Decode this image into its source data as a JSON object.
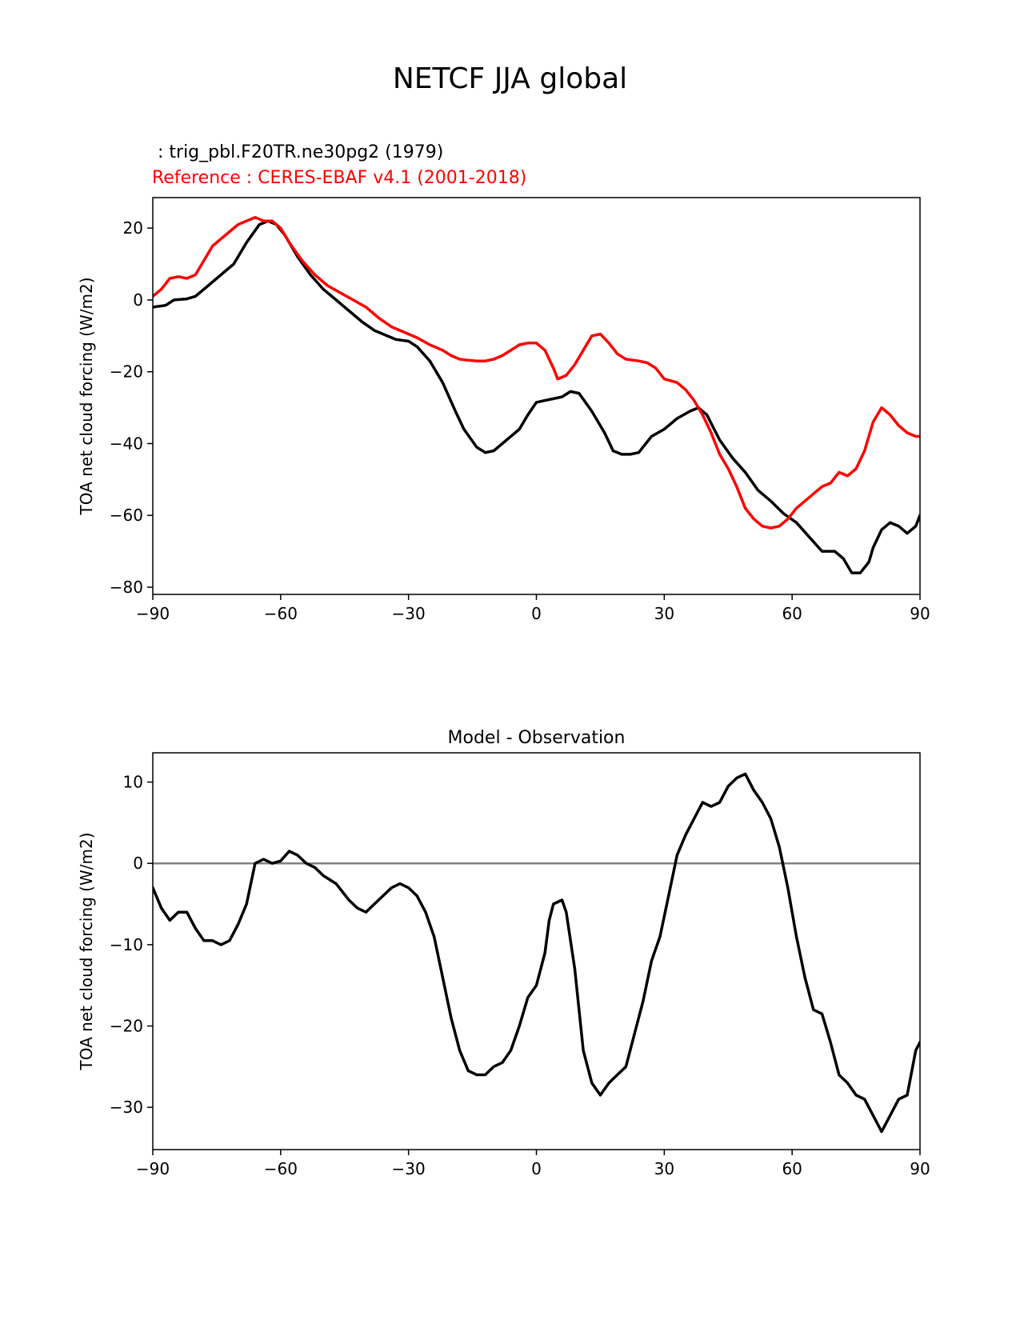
{
  "figure": {
    "title": "NETCF JJA global",
    "test_label": " : trig_pbl.F20TR.ne30pg2 (1979)",
    "ref_label": "Reference : CERES-EBAF v4.1 (2001-2018)",
    "colors": {
      "test": "#000000",
      "reference": "#ff0000",
      "zero_line": "#808080"
    }
  },
  "chart_data": [
    {
      "type": "line",
      "title": "",
      "xlabel": "",
      "ylabel": "TOA net cloud forcing (W/m2)",
      "xlim": [
        -90,
        90
      ],
      "ylim": [
        -82,
        28.5
      ],
      "xticks": [
        -90,
        -60,
        -30,
        0,
        30,
        60,
        90
      ],
      "yticks": [
        -80,
        -60,
        -40,
        -20,
        0,
        20
      ],
      "series": [
        {
          "color": "#000000",
          "points": [
            [
              -90,
              -2
            ],
            [
              -87,
              -1.5
            ],
            [
              -85,
              0
            ],
            [
              -82,
              0.3
            ],
            [
              -80,
              1
            ],
            [
              -77,
              4
            ],
            [
              -74,
              7
            ],
            [
              -71,
              10
            ],
            [
              -68,
              16
            ],
            [
              -65,
              21
            ],
            [
              -63,
              22
            ],
            [
              -61,
              21
            ],
            [
              -59,
              18
            ],
            [
              -56,
              12
            ],
            [
              -53,
              7
            ],
            [
              -50,
              3
            ],
            [
              -47,
              0
            ],
            [
              -44,
              -3
            ],
            [
              -41,
              -6
            ],
            [
              -38,
              -8.5
            ],
            [
              -35,
              -10
            ],
            [
              -33,
              -11
            ],
            [
              -30,
              -11.5
            ],
            [
              -28,
              -13
            ],
            [
              -25,
              -17
            ],
            [
              -22,
              -23
            ],
            [
              -19,
              -31
            ],
            [
              -17,
              -36
            ],
            [
              -14,
              -41
            ],
            [
              -12,
              -42.5
            ],
            [
              -10,
              -42
            ],
            [
              -7,
              -39
            ],
            [
              -4,
              -36
            ],
            [
              -2,
              -32
            ],
            [
              0,
              -28.5
            ],
            [
              2,
              -28
            ],
            [
              4,
              -27.5
            ],
            [
              6,
              -27
            ],
            [
              8,
              -25.5
            ],
            [
              10,
              -26
            ],
            [
              13,
              -31
            ],
            [
              16,
              -37
            ],
            [
              18,
              -42
            ],
            [
              20,
              -43
            ],
            [
              22,
              -43
            ],
            [
              24,
              -42.5
            ],
            [
              27,
              -38
            ],
            [
              30,
              -36
            ],
            [
              33,
              -33
            ],
            [
              36,
              -31
            ],
            [
              38,
              -30
            ],
            [
              40,
              -32
            ],
            [
              43,
              -39
            ],
            [
              46,
              -44
            ],
            [
              49,
              -48
            ],
            [
              52,
              -53
            ],
            [
              55,
              -56
            ],
            [
              58,
              -59.5
            ],
            [
              61,
              -62
            ],
            [
              64,
              -66
            ],
            [
              67,
              -70
            ],
            [
              70,
              -70
            ],
            [
              72,
              -72
            ],
            [
              74,
              -76
            ],
            [
              76,
              -76
            ],
            [
              78,
              -73
            ],
            [
              79,
              -69
            ],
            [
              81,
              -64
            ],
            [
              83,
              -62
            ],
            [
              85,
              -63
            ],
            [
              87,
              -65
            ],
            [
              89,
              -63
            ],
            [
              90,
              -60
            ]
          ]
        },
        {
          "color": "#ff0000",
          "points": [
            [
              -90,
              1
            ],
            [
              -88,
              3
            ],
            [
              -86,
              6
            ],
            [
              -84,
              6.5
            ],
            [
              -82,
              6
            ],
            [
              -80,
              7
            ],
            [
              -78,
              11
            ],
            [
              -76,
              15
            ],
            [
              -74,
              17
            ],
            [
              -72,
              19
            ],
            [
              -70,
              21
            ],
            [
              -68,
              22
            ],
            [
              -66,
              23
            ],
            [
              -64,
              22
            ],
            [
              -62,
              22
            ],
            [
              -60,
              20
            ],
            [
              -58,
              16
            ],
            [
              -55,
              11
            ],
            [
              -52,
              7
            ],
            [
              -49,
              4
            ],
            [
              -46,
              2
            ],
            [
              -43,
              0
            ],
            [
              -40,
              -2
            ],
            [
              -37,
              -5
            ],
            [
              -34,
              -7.5
            ],
            [
              -31,
              -9
            ],
            [
              -28,
              -10.5
            ],
            [
              -25,
              -12.5
            ],
            [
              -22,
              -14
            ],
            [
              -20,
              -15.5
            ],
            [
              -18,
              -16.5
            ],
            [
              -16,
              -16.8
            ],
            [
              -14,
              -17
            ],
            [
              -12,
              -17
            ],
            [
              -10,
              -16.5
            ],
            [
              -8,
              -15.5
            ],
            [
              -6,
              -14
            ],
            [
              -4,
              -12.5
            ],
            [
              -2,
              -12
            ],
            [
              0,
              -12
            ],
            [
              2,
              -14
            ],
            [
              4,
              -19
            ],
            [
              5,
              -22
            ],
            [
              7,
              -21
            ],
            [
              9,
              -18
            ],
            [
              11,
              -14
            ],
            [
              13,
              -10
            ],
            [
              15,
              -9.5
            ],
            [
              17,
              -12
            ],
            [
              19,
              -15
            ],
            [
              21,
              -16.5
            ],
            [
              24,
              -17
            ],
            [
              26,
              -17.5
            ],
            [
              28,
              -19
            ],
            [
              30,
              -22
            ],
            [
              33,
              -23
            ],
            [
              35,
              -25
            ],
            [
              37,
              -28
            ],
            [
              39,
              -32
            ],
            [
              41,
              -37
            ],
            [
              43,
              -43
            ],
            [
              45,
              -47
            ],
            [
              47,
              -52
            ],
            [
              49,
              -58
            ],
            [
              51,
              -61
            ],
            [
              53,
              -63
            ],
            [
              55,
              -63.5
            ],
            [
              57,
              -63
            ],
            [
              59,
              -61
            ],
            [
              61,
              -58
            ],
            [
              63,
              -56
            ],
            [
              65,
              -54
            ],
            [
              67,
              -52
            ],
            [
              69,
              -51
            ],
            [
              71,
              -48
            ],
            [
              73,
              -49
            ],
            [
              75,
              -47
            ],
            [
              77,
              -42
            ],
            [
              79,
              -34
            ],
            [
              81,
              -30
            ],
            [
              83,
              -32
            ],
            [
              85,
              -35
            ],
            [
              87,
              -37
            ],
            [
              89,
              -38
            ],
            [
              90,
              -38
            ]
          ]
        }
      ]
    },
    {
      "type": "line",
      "title": "Model - Observation",
      "xlabel": "",
      "ylabel": "TOA net cloud forcing (W/m2)",
      "xlim": [
        -90,
        90
      ],
      "ylim": [
        -35.2,
        13.6
      ],
      "xticks": [
        -90,
        -60,
        -30,
        0,
        30,
        60,
        90
      ],
      "yticks": [
        -30,
        -20,
        -10,
        0,
        10
      ],
      "zero_line": true,
      "series": [
        {
          "color": "#000000",
          "points": [
            [
              -90,
              -3
            ],
            [
              -88,
              -5.5
            ],
            [
              -86,
              -7
            ],
            [
              -84,
              -6
            ],
            [
              -82,
              -6
            ],
            [
              -80,
              -8
            ],
            [
              -78,
              -9.5
            ],
            [
              -76,
              -9.5
            ],
            [
              -74,
              -10
            ],
            [
              -72,
              -9.5
            ],
            [
              -70,
              -7.5
            ],
            [
              -68,
              -5
            ],
            [
              -66,
              0
            ],
            [
              -64,
              0.5
            ],
            [
              -62,
              0
            ],
            [
              -60,
              0.3
            ],
            [
              -58,
              1.5
            ],
            [
              -56,
              1
            ],
            [
              -54,
              0
            ],
            [
              -52,
              -0.5
            ],
            [
              -50,
              -1.5
            ],
            [
              -47,
              -2.5
            ],
            [
              -44,
              -4.5
            ],
            [
              -42,
              -5.5
            ],
            [
              -40,
              -6
            ],
            [
              -38,
              -5
            ],
            [
              -36,
              -4
            ],
            [
              -34,
              -3
            ],
            [
              -32,
              -2.5
            ],
            [
              -30,
              -3
            ],
            [
              -28,
              -4
            ],
            [
              -26,
              -6
            ],
            [
              -24,
              -9
            ],
            [
              -22,
              -14
            ],
            [
              -20,
              -19
            ],
            [
              -18,
              -23
            ],
            [
              -16,
              -25.5
            ],
            [
              -14,
              -26
            ],
            [
              -12,
              -26
            ],
            [
              -10,
              -25
            ],
            [
              -8,
              -24.5
            ],
            [
              -6,
              -23
            ],
            [
              -4,
              -20
            ],
            [
              -2,
              -16.5
            ],
            [
              0,
              -15
            ],
            [
              2,
              -11
            ],
            [
              3,
              -7
            ],
            [
              4,
              -5
            ],
            [
              6,
              -4.5
            ],
            [
              7,
              -6
            ],
            [
              9,
              -13
            ],
            [
              11,
              -23
            ],
            [
              13,
              -27
            ],
            [
              15,
              -28.5
            ],
            [
              17,
              -27
            ],
            [
              19,
              -26
            ],
            [
              21,
              -25
            ],
            [
              23,
              -21
            ],
            [
              25,
              -17
            ],
            [
              27,
              -12
            ],
            [
              29,
              -9
            ],
            [
              31,
              -4
            ],
            [
              33,
              1
            ],
            [
              35,
              3.5
            ],
            [
              37,
              5.5
            ],
            [
              39,
              7.5
            ],
            [
              41,
              7
            ],
            [
              43,
              7.5
            ],
            [
              45,
              9.5
            ],
            [
              47,
              10.5
            ],
            [
              49,
              11
            ],
            [
              51,
              9
            ],
            [
              53,
              7.5
            ],
            [
              55,
              5.5
            ],
            [
              57,
              2
            ],
            [
              59,
              -3
            ],
            [
              61,
              -9
            ],
            [
              63,
              -14
            ],
            [
              65,
              -18
            ],
            [
              67,
              -18.5
            ],
            [
              69,
              -22
            ],
            [
              71,
              -26
            ],
            [
              73,
              -27
            ],
            [
              75,
              -28.5
            ],
            [
              77,
              -29
            ],
            [
              79,
              -31
            ],
            [
              81,
              -33
            ],
            [
              83,
              -31
            ],
            [
              85,
              -29
            ],
            [
              87,
              -28.5
            ],
            [
              89,
              -23
            ],
            [
              90,
              -22
            ]
          ]
        }
      ]
    }
  ]
}
